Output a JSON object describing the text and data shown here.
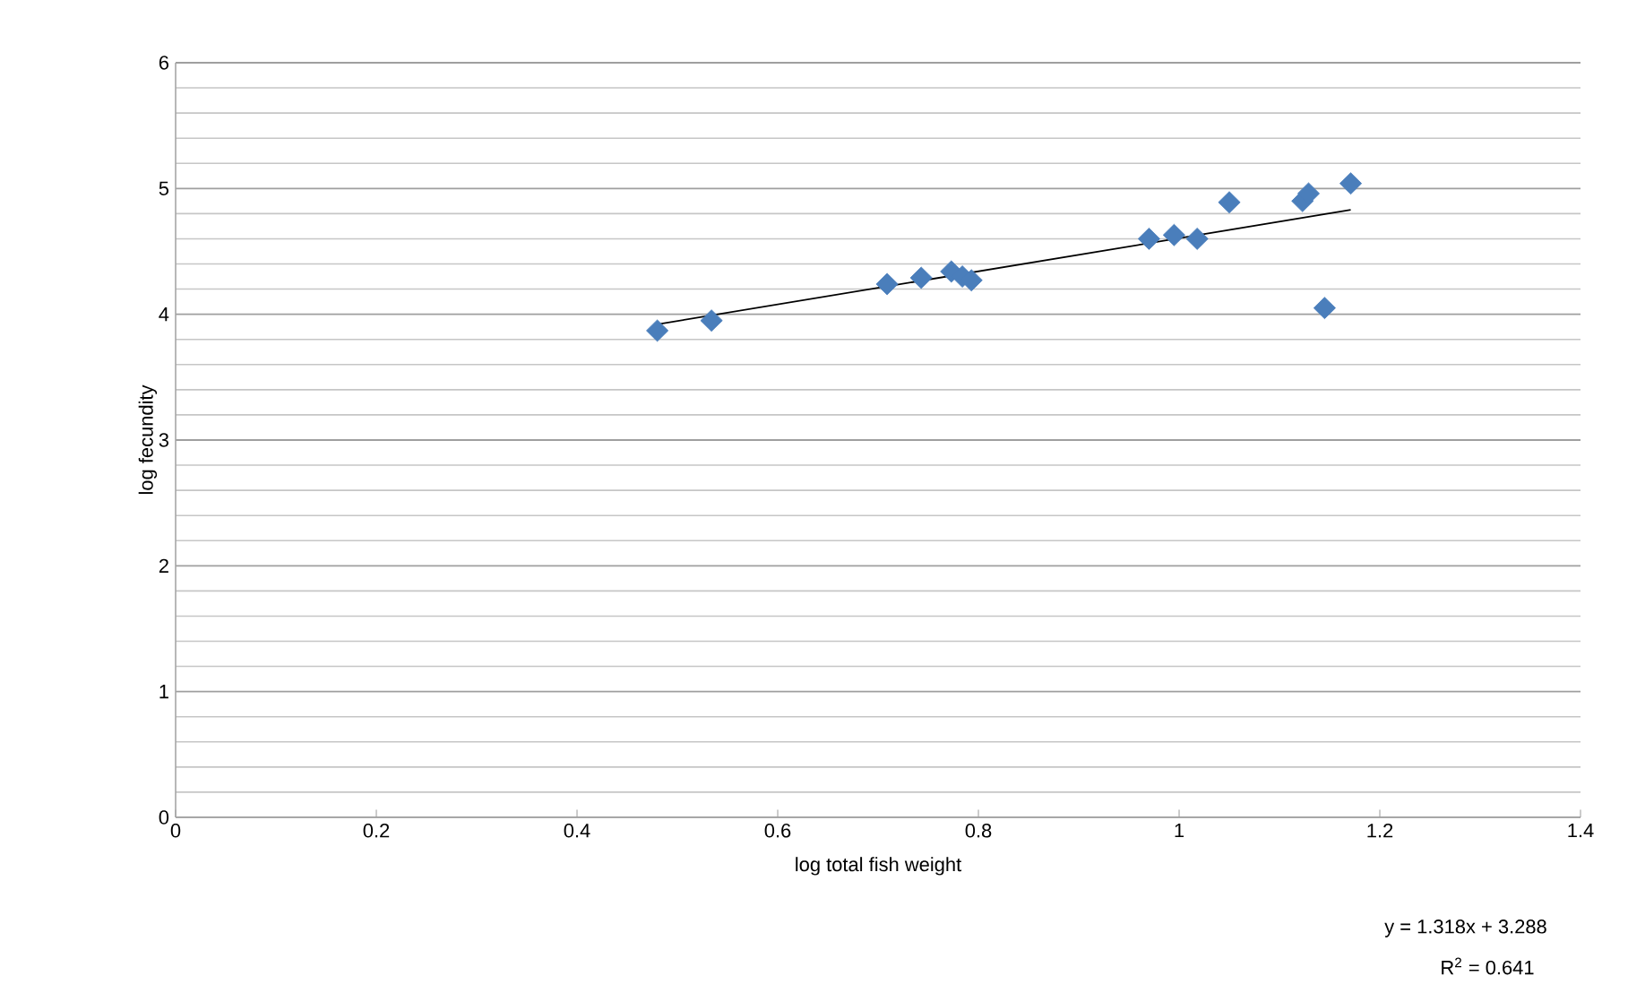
{
  "chart_data": {
    "type": "scatter",
    "xlabel": "log total fish weight",
    "ylabel": "log fecundity",
    "xlim": [
      0,
      1.4
    ],
    "ylim": [
      0,
      6
    ],
    "xticks": [
      0,
      0.2,
      0.4,
      0.6,
      0.8,
      1,
      1.2,
      1.4
    ],
    "yticks": [
      0,
      1,
      2,
      3,
      4,
      5,
      6
    ],
    "grid": "y",
    "marker": "diamond",
    "series": [
      {
        "color": "#4a7ebb",
        "x": [
          0.48,
          0.534,
          0.709,
          0.743,
          0.773,
          0.784,
          0.793,
          0.97,
          0.995,
          1.018,
          1.05,
          1.123,
          1.129,
          1.145,
          1.171
        ],
        "values": [
          3.87,
          3.95,
          4.24,
          4.29,
          4.34,
          4.3,
          4.27,
          4.6,
          4.63,
          4.6,
          4.89,
          4.9,
          4.96,
          4.05,
          5.04
        ]
      },
      {
        "type": "line",
        "color": "#000000",
        "marker": "none",
        "x": [
          0.48,
          1.171
        ],
        "values": [
          3.92,
          4.83
        ]
      }
    ],
    "annotations": [
      "y = 1.318x + 3.288",
      "R$^{2}$ = 0.641"
    ]
  }
}
